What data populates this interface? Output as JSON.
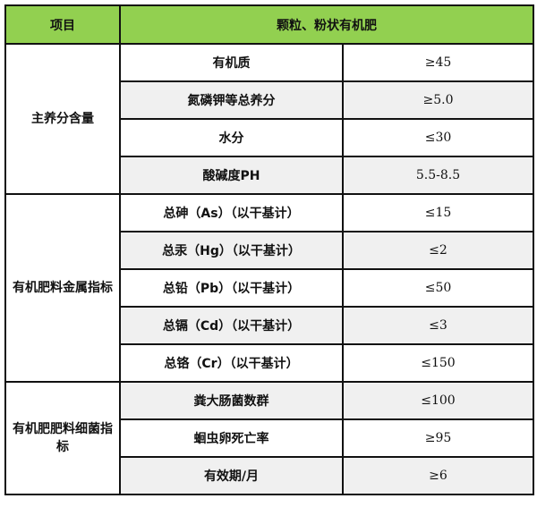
{
  "header": {
    "col1": "项目",
    "col2": "颗粒、粉状有机肥"
  },
  "colors": {
    "header_bg": "#92d050",
    "alt_row_bg": "#f0f0f0"
  },
  "groups": [
    {
      "label": "主养分含量",
      "rows": [
        {
          "item": "有机质",
          "value": "≥45"
        },
        {
          "item": "氮磷钾等总养分",
          "value": "≥5.0"
        },
        {
          "item": "水分",
          "value": "≤30"
        },
        {
          "item": "酸碱度PH",
          "value": "5.5-8.5"
        }
      ]
    },
    {
      "label": "有机肥料金属指标",
      "rows": [
        {
          "item": "总砷（As）（以干基计）",
          "value": "≤15"
        },
        {
          "item": "总汞（Hg）（以干基计）",
          "value": "≤2"
        },
        {
          "item": "总铅（Pb）（以干基计）",
          "value": "≤50"
        },
        {
          "item": "总镉（Cd）（以干基计）",
          "value": "≤3"
        },
        {
          "item": "总铬（Cr）（以干基计）",
          "value": "≤150"
        }
      ]
    },
    {
      "label": "有机肥肥料细菌指标",
      "rows": [
        {
          "item": "粪大肠菌数群",
          "value": "≤100"
        },
        {
          "item": "蛔虫卵死亡率",
          "value": "≥95"
        },
        {
          "item": "有效期/月",
          "value": "≥6"
        }
      ]
    }
  ]
}
